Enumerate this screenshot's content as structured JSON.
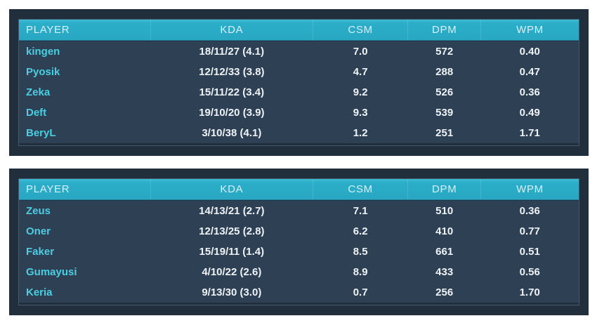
{
  "colors": {
    "page_background": "#ffffff",
    "frame": "#212e3c",
    "header_background": "#2baec9",
    "header_text": "#d8eef4",
    "row_background": "#2e4053",
    "player_name_text": "#49cfe3",
    "value_text": "#eef2f5"
  },
  "columns": [
    "PLAYER",
    "KDA",
    "CSM",
    "DPM",
    "WPM"
  ],
  "tables": [
    {
      "name": "team-1-stats",
      "rows": [
        {
          "player": "kingen",
          "kda": "18/11/27 (4.1)",
          "csm": "7.0",
          "dpm": "572",
          "wpm": "0.40"
        },
        {
          "player": "Pyosik",
          "kda": "12/12/33 (3.8)",
          "csm": "4.7",
          "dpm": "288",
          "wpm": "0.47"
        },
        {
          "player": "Zeka",
          "kda": "15/11/22 (3.4)",
          "csm": "9.2",
          "dpm": "526",
          "wpm": "0.36"
        },
        {
          "player": "Deft",
          "kda": "19/10/20 (3.9)",
          "csm": "9.3",
          "dpm": "539",
          "wpm": "0.49"
        },
        {
          "player": "BeryL",
          "kda": "3/10/38 (4.1)",
          "csm": "1.2",
          "dpm": "251",
          "wpm": "1.71"
        }
      ]
    },
    {
      "name": "team-2-stats",
      "rows": [
        {
          "player": "Zeus",
          "kda": "14/13/21 (2.7)",
          "csm": "7.1",
          "dpm": "510",
          "wpm": "0.36"
        },
        {
          "player": "Oner",
          "kda": "12/13/25 (2.8)",
          "csm": "6.2",
          "dpm": "410",
          "wpm": "0.77"
        },
        {
          "player": "Faker",
          "kda": "15/19/11 (1.4)",
          "csm": "8.5",
          "dpm": "661",
          "wpm": "0.51"
        },
        {
          "player": "Gumayusi",
          "kda": "4/10/22 (2.6)",
          "csm": "8.9",
          "dpm": "433",
          "wpm": "0.56"
        },
        {
          "player": "Keria",
          "kda": "9/13/30 (3.0)",
          "csm": "0.7",
          "dpm": "256",
          "wpm": "1.70"
        }
      ]
    }
  ]
}
